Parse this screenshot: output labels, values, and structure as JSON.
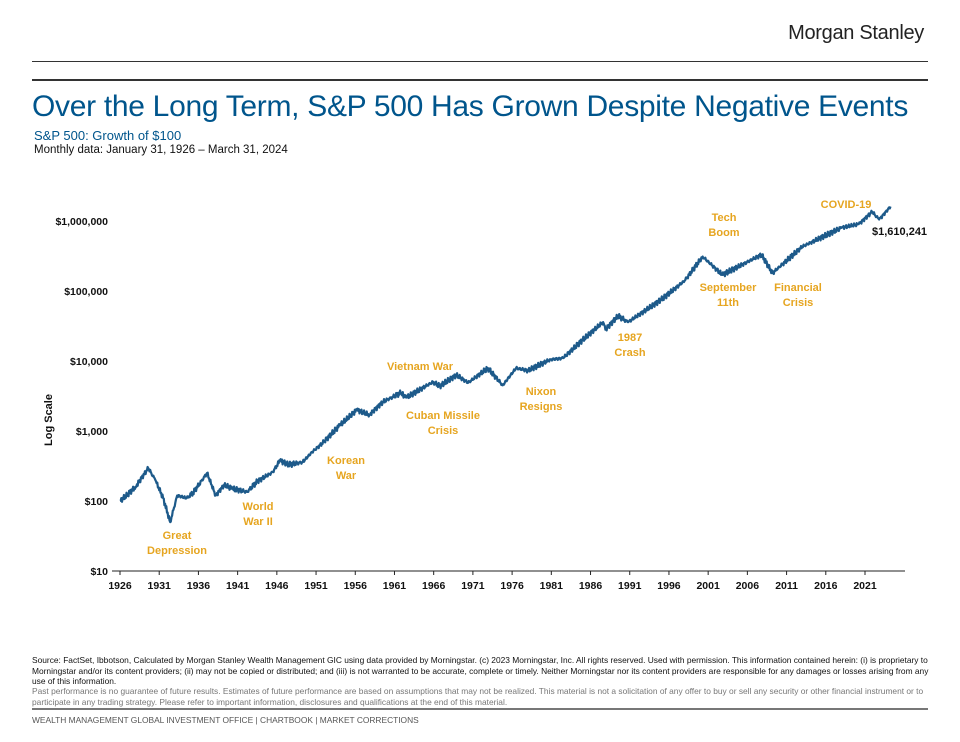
{
  "brand": "Morgan Stanley",
  "title": "Over the Long Term, S&P 500 Has Grown Despite Negative Events",
  "subtitle": "S&P 500: Growth of $100",
  "date_range": "Monthly data: January 31, 1926 – March 31, 2024",
  "colors": {
    "title": "#00558c",
    "line": "#1d5a8a",
    "annotation": "#e6a520"
  },
  "chart_data": {
    "type": "line",
    "title": "S&P 500: Growth of $100",
    "xlabel": "",
    "ylabel": "Log Scale",
    "yscale": "log",
    "ylim": [
      10,
      3000000
    ],
    "xlim": [
      1926,
      2024.25
    ],
    "y_ticks": [
      10,
      100,
      1000,
      10000,
      100000,
      1000000
    ],
    "y_tick_labels": [
      "$10",
      "$100",
      "$1,000",
      "$10,000",
      "$100,000",
      "$1,000,000"
    ],
    "x_tick_labels": [
      "1926",
      "1931",
      "1936",
      "1941",
      "1946",
      "1951",
      "1956",
      "1961",
      "1966",
      "1971",
      "1976",
      "1981",
      "1986",
      "1991",
      "1996",
      "2001",
      "2006",
      "2011",
      "2016",
      "2021"
    ],
    "series": [
      {
        "name": "S&P 500 Growth of $100",
        "x": [
          1926,
          1927,
          1928,
          1929.6,
          1930.5,
          1931.5,
          1932.4,
          1933.3,
          1934.5,
          1935.3,
          1937.1,
          1938.2,
          1939.3,
          1940.3,
          1942.2,
          1943.5,
          1945.5,
          1946.4,
          1947.5,
          1949.3,
          1950.5,
          1952,
          1954,
          1956.2,
          1957.8,
          1959.5,
          1961.8,
          1962.5,
          1965.9,
          1966.8,
          1968.9,
          1970.4,
          1972.9,
          1974.8,
          1976.5,
          1978,
          1980.9,
          1982.5,
          1985,
          1987.6,
          1987.9,
          1989.5,
          1990.8,
          1995,
          1998,
          2000.3,
          2002.8,
          2007.8,
          2009.2,
          2013,
          2018,
          2020.2,
          2021.9,
          2022.8,
          2024.25
        ],
        "values": [
          100,
          125,
          160,
          295,
          200,
          110,
          50,
          120,
          110,
          130,
          250,
          120,
          170,
          150,
          135,
          190,
          260,
          380,
          330,
          360,
          500,
          700,
          1200,
          2000,
          1700,
          2600,
          3500,
          3000,
          5000,
          4400,
          6300,
          4900,
          7900,
          4500,
          7900,
          7300,
          10500,
          11000,
          20000,
          36000,
          28000,
          44000,
          36000,
          75000,
          140000,
          310000,
          170000,
          330000,
          180000,
          430000,
          800000,
          900000,
          1350000,
          1050000,
          1610241
        ]
      }
    ],
    "end_label": "$1,610,241",
    "annotations": [
      {
        "text": "Great Depression",
        "lines": [
          "Great",
          "Depression"
        ]
      },
      {
        "text": "World War II",
        "lines": [
          "World",
          "War II"
        ]
      },
      {
        "text": "Korean War",
        "lines": [
          "Korean",
          "War"
        ]
      },
      {
        "text": "Vietnam War",
        "lines": [
          "Vietnam War"
        ]
      },
      {
        "text": "Cuban Missile Crisis",
        "lines": [
          "Cuban Missile",
          "Crisis"
        ]
      },
      {
        "text": "Nixon Resigns",
        "lines": [
          "Nixon",
          "Resigns"
        ]
      },
      {
        "text": "1987 Crash",
        "lines": [
          "1987",
          "Crash"
        ]
      },
      {
        "text": "Tech Boom",
        "lines": [
          "Tech",
          "Boom"
        ]
      },
      {
        "text": "September 11th",
        "lines": [
          "September",
          "11th"
        ]
      },
      {
        "text": "Financial Crisis",
        "lines": [
          "Financial",
          "Crisis"
        ]
      },
      {
        "text": "COVID-19",
        "lines": [
          "COVID-19"
        ]
      }
    ]
  },
  "footer": {
    "source": "Source: FactSet, Ibbotson, Calculated by Morgan Stanley Wealth Management  GIC using data provided by Morningstar. (c) 2023 Morningstar, Inc. All rights reserved. Used with permission. This information contained herein: (i) is proprietary to Morningstar and/or its content providers; (ii) may not be copied or distributed; and (iii) is not warranted to be accurate, complete or timely. Neither Morningstar nor its content providers are responsible for any damages or losses arising from any use of this information.",
    "disclaimer": "Past performance is no guarantee of future results. Estimates of future performance are based on assumptions that may not be realized. This material is not a solicitation of any offer to buy or sell any security or other financial instrument or to participate in any trading strategy. Please refer to important information, disclosures and qualifications at the end of this material.",
    "nav": "WEALTH MANAGEMENT GLOBAL INVESTMENT OFFICE  |  CHARTBOOK  | MARKET CORRECTIONS"
  }
}
